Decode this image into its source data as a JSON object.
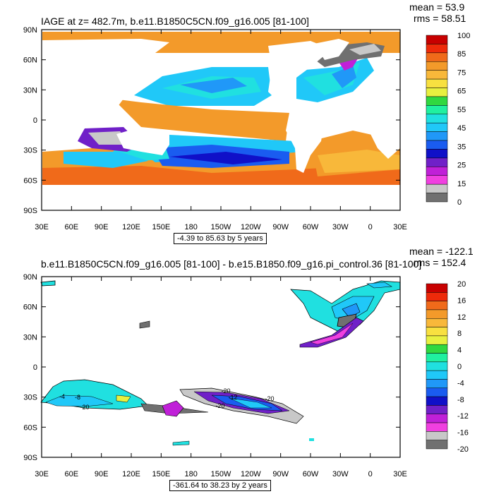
{
  "panels": [
    {
      "title": "IAGE at z= 482.7m, b.e11.B1850C5CN.f09_g16.005 [81-100]",
      "mean": "mean = 53.9",
      "rms": "rms = 58.51",
      "range_text": "-4.39 to 85.63 by 5 years",
      "colorbar_labels": [
        "100",
        "85",
        "75",
        "65",
        "55",
        "45",
        "35",
        "25",
        "15",
        "0"
      ],
      "colorbar_colors": [
        "#c80000",
        "#ee2a0a",
        "#f06a1a",
        "#f39a2a",
        "#f8b83a",
        "#f8e040",
        "#e8f040",
        "#30d840",
        "#20f0a0",
        "#20e0e0",
        "#20c8f8",
        "#2098f8",
        "#1a5cf0",
        "#1010c8",
        "#7020c8",
        "#c020d8",
        "#f040e0",
        "#c8c8c8",
        "#707070"
      ],
      "y_ticks": [
        "90N",
        "60N",
        "30N",
        "0",
        "30S",
        "60S",
        "90S"
      ],
      "x_ticks": [
        "30E",
        "60E",
        "90E",
        "120E",
        "150E",
        "180",
        "150W",
        "120W",
        "90W",
        "60W",
        "30W",
        "0",
        "30E"
      ]
    },
    {
      "title": "b.e11.B1850C5CN.f09_g16.005 [81-100] - b.e15.B1850.f09_g16.pi_control.36 [81-100]",
      "mean": "mean = -122.1",
      "rms": "rms = 152.4",
      "range_text": "-361.64 to 38.23 by 2 years",
      "colorbar_labels": [
        "20",
        "16",
        "12",
        "8",
        "4",
        "0",
        "-4",
        "-8",
        "-12",
        "-16",
        "-20"
      ],
      "colorbar_colors": [
        "#c80000",
        "#ee2a0a",
        "#f06a1a",
        "#f39a2a",
        "#f8b83a",
        "#f8e040",
        "#e8f040",
        "#30d840",
        "#20f0a0",
        "#20e0e0",
        "#20c8f8",
        "#2098f8",
        "#1a5cf0",
        "#1010c8",
        "#7020c8",
        "#c020d8",
        "#f040e0",
        "#c8c8c8",
        "#707070"
      ],
      "contour_labels": [
        "-20",
        "-20",
        "-20",
        "-20",
        "-4",
        "-8",
        "-12"
      ],
      "y_ticks": [
        "90N",
        "60N",
        "30N",
        "0",
        "30S",
        "60S",
        "90S"
      ],
      "x_ticks": [
        "30E",
        "60E",
        "90E",
        "120E",
        "150E",
        "180",
        "150W",
        "120W",
        "90W",
        "60W",
        "30W",
        "0",
        "30E"
      ]
    }
  ]
}
